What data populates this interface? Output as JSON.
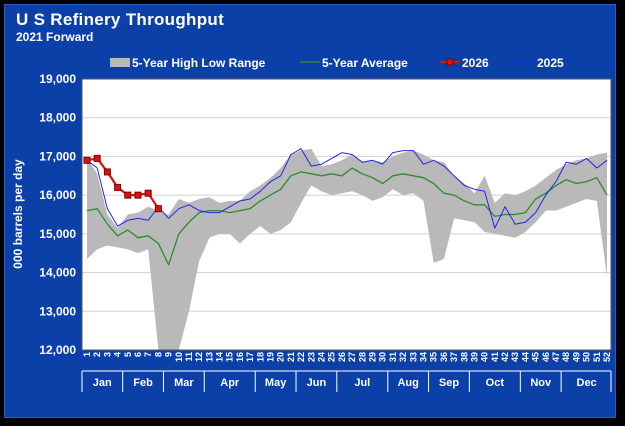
{
  "colors": {
    "background": "#0b40a8",
    "plot_area": "#ffffff",
    "range_band": "#b9b9b9",
    "average_line": "#2e8b2e",
    "series_2026": "#e01010",
    "series_2025": "#2323f0",
    "axis_text": "#ffffff"
  },
  "chart_data": {
    "type": "line",
    "title": "U S  Refinery Throughput",
    "subtitle": "2021 Forward",
    "ylabel": "000 barrels per day",
    "xlabel": "",
    "ylim": [
      12000,
      19000
    ],
    "yticks": [
      12000,
      13000,
      14000,
      15000,
      16000,
      17000,
      18000,
      19000
    ],
    "ytick_labels": [
      "12,000",
      "13,000",
      "14,000",
      "15,000",
      "16,000",
      "17,000",
      "18,000",
      "19,000"
    ],
    "x": [
      1,
      2,
      3,
      4,
      5,
      6,
      7,
      8,
      9,
      10,
      11,
      12,
      13,
      14,
      15,
      16,
      17,
      18,
      19,
      20,
      21,
      22,
      23,
      24,
      25,
      26,
      27,
      28,
      29,
      30,
      31,
      32,
      33,
      34,
      35,
      36,
      37,
      38,
      39,
      40,
      41,
      42,
      43,
      44,
      45,
      46,
      47,
      48,
      49,
      50,
      51,
      52
    ],
    "months": [
      {
        "label": "Jan",
        "start_week": 1,
        "end_week": 4
      },
      {
        "label": "Feb",
        "start_week": 5,
        "end_week": 8
      },
      {
        "label": "Mar",
        "start_week": 9,
        "end_week": 12
      },
      {
        "label": "Apr",
        "start_week": 13,
        "end_week": 17
      },
      {
        "label": "May",
        "start_week": 18,
        "end_week": 21
      },
      {
        "label": "Jun",
        "start_week": 22,
        "end_week": 25
      },
      {
        "label": "Jul",
        "start_week": 26,
        "end_week": 30
      },
      {
        "label": "Aug",
        "start_week": 31,
        "end_week": 34
      },
      {
        "label": "Sep",
        "start_week": 35,
        "end_week": 38
      },
      {
        "label": "Oct",
        "start_week": 39,
        "end_week": 43
      },
      {
        "label": "Nov",
        "start_week": 44,
        "end_week": 47
      },
      {
        "label": "Dec",
        "start_week": 48,
        "end_week": 52
      }
    ],
    "legend_position": "top",
    "grid": true,
    "band": {
      "name": "5-Year High Low Range",
      "high": [
        16950,
        16550,
        15500,
        15150,
        15500,
        15550,
        15700,
        15600,
        15500,
        15900,
        15800,
        15900,
        15950,
        15800,
        15850,
        15850,
        16100,
        16250,
        16450,
        16700,
        17050,
        17150,
        17200,
        16750,
        16800,
        16900,
        17050,
        16850,
        16900,
        16850,
        17000,
        17100,
        17150,
        17050,
        16900,
        16850,
        16500,
        16300,
        16050,
        16500,
        15800,
        16050,
        16000,
        16100,
        16250,
        16450,
        16650,
        16800,
        16900,
        16950,
        17050,
        17100
      ],
      "low": [
        14350,
        14600,
        14700,
        14650,
        14600,
        14500,
        14600,
        12000,
        12000,
        12000,
        13000,
        14300,
        14900,
        15000,
        15000,
        14750,
        15000,
        15200,
        15000,
        15100,
        15300,
        15800,
        16250,
        16100,
        16000,
        16050,
        16100,
        16000,
        15850,
        15950,
        16150,
        16000,
        16050,
        15850,
        14250,
        14350,
        15400,
        15350,
        15300,
        15050,
        15000,
        14950,
        14900,
        15050,
        15300,
        15600,
        15600,
        15700,
        15800,
        15900,
        15850,
        13900
      ]
    },
    "series": [
      {
        "name": "5-Year Average",
        "values": [
          15600,
          15650,
          15250,
          14950,
          15100,
          14900,
          14950,
          14750,
          14200,
          15000,
          15300,
          15550,
          15600,
          15600,
          15550,
          15600,
          15650,
          15850,
          16000,
          16150,
          16500,
          16600,
          16550,
          16500,
          16550,
          16500,
          16700,
          16550,
          16450,
          16300,
          16500,
          16550,
          16500,
          16450,
          16300,
          16050,
          16000,
          15850,
          15750,
          15750,
          15450,
          15500,
          15500,
          15550,
          15900,
          16050,
          16250,
          16400,
          16300,
          16350,
          16450,
          16000
        ]
      },
      {
        "name": "2026",
        "values": [
          16900,
          16950,
          16600,
          16200,
          16000,
          16000,
          16050,
          15650,
          null,
          null,
          null,
          null,
          null,
          null,
          null,
          null,
          null,
          null,
          null,
          null,
          null,
          null,
          null,
          null,
          null,
          null,
          null,
          null,
          null,
          null,
          null,
          null,
          null,
          null,
          null,
          null,
          null,
          null,
          null,
          null,
          null,
          null,
          null,
          null,
          null,
          null,
          null,
          null,
          null,
          null,
          null,
          null
        ]
      },
      {
        "name": "2025",
        "values": [
          16900,
          16700,
          15650,
          15200,
          15350,
          15400,
          15350,
          15700,
          15400,
          15650,
          15750,
          15600,
          15550,
          15550,
          15700,
          15850,
          15900,
          16100,
          16350,
          16500,
          17050,
          17200,
          16750,
          16800,
          16950,
          17100,
          17050,
          16850,
          16900,
          16800,
          17100,
          17150,
          17150,
          16800,
          16900,
          16750,
          16500,
          16250,
          16150,
          16100,
          15150,
          15700,
          15250,
          15300,
          15550,
          16000,
          16350,
          16850,
          16800,
          16950,
          16700,
          16900
        ]
      }
    ]
  }
}
